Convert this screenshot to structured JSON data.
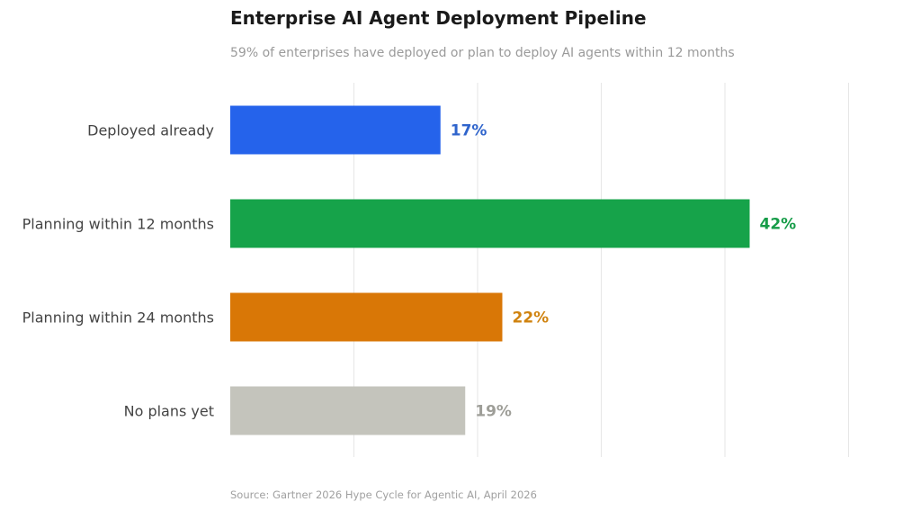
{
  "chart_data": {
    "type": "bar",
    "orientation": "horizontal",
    "title": "Enterprise AI Agent Deployment Pipeline",
    "subtitle": "59% of enterprises have deployed or plan to deploy AI agents within 12 months",
    "source": "Source: Gartner 2026 Hype Cycle for Agentic AI, April 2026",
    "categories": [
      "Deployed already",
      "Planning within 12 months",
      "Planning within 24 months",
      "No plans yet"
    ],
    "values": [
      17,
      42,
      22,
      19
    ],
    "value_labels": [
      "17%",
      "42%",
      "22%",
      "19%"
    ],
    "colors": [
      "#2563eb",
      "#16a34a",
      "#d97706",
      "#c4c4bc"
    ],
    "label_colors": [
      "#2f64cc",
      "#169c48",
      "#d0830f",
      "#9e9e98"
    ],
    "xlim": [
      0,
      50
    ],
    "grid": true,
    "grid_color": "#e6e6e6",
    "xlabel": "",
    "ylabel": ""
  }
}
